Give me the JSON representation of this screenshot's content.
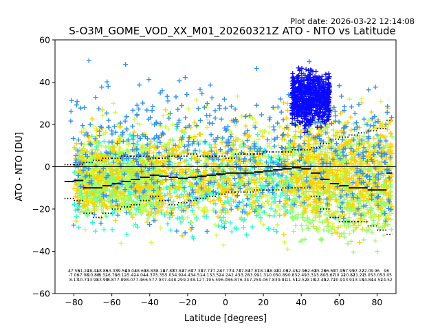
{
  "chart_data": {
    "type": "scatter",
    "plot_date": "Plot date: 2026-03-22 12:14:08",
    "title": "S-O3M_GOME_VOD_XX_M01_20260321Z ATO - NTO vs Latitude",
    "xlabel": "Latitude [degrees]",
    "ylabel": "ATO - NTO [DU]",
    "xlim": [
      -90,
      90
    ],
    "ylim": [
      -60,
      60
    ],
    "xticks": [
      -80,
      -60,
      -40,
      -20,
      0,
      20,
      40,
      60,
      80
    ],
    "yticks": [
      -60,
      -40,
      -20,
      0,
      20,
      40,
      60
    ],
    "grid": false,
    "marker": "+",
    "zero_line": 0,
    "point_colors": [
      "#2bffcc",
      "#90ff6a",
      "#cfff3a",
      "#ffd000",
      "#2e90ff",
      "#0a0aff"
    ],
    "scatter_clouds": [
      {
        "color": "#2bffcc",
        "xmin": -80,
        "xmax": 37,
        "ymin": -38,
        "ymax": 22
      },
      {
        "color": "#90ff6a",
        "xmin": -78,
        "xmax": -35,
        "ymin": -30,
        "ymax": 18
      },
      {
        "color": "#90ff6a",
        "xmin": 35,
        "xmax": 88,
        "ymin": -45,
        "ymax": 28
      },
      {
        "color": "#cfff3a",
        "xmin": -75,
        "xmax": 88,
        "ymin": -45,
        "ymax": 40
      },
      {
        "color": "#ffd000",
        "xmin": 30,
        "xmax": 88,
        "ymin": -38,
        "ymax": 35
      },
      {
        "color": "#ffd000",
        "xmin": -80,
        "xmax": 20,
        "ymin": -35,
        "ymax": 28
      },
      {
        "color": "#2e90ff",
        "xmin": -82,
        "xmax": 88,
        "ymin": -40,
        "ymax": 55
      },
      {
        "color": "#0a0aff",
        "xmin": 35,
        "xmax": 55,
        "ymin": 15,
        "ymax": 50
      }
    ],
    "mean_line": {
      "x": [
        -85,
        -80,
        -75,
        -70,
        -65,
        -60,
        -55,
        -50,
        -45,
        -40,
        -35,
        -30,
        -25,
        -20,
        -15,
        -10,
        -5,
        0,
        5,
        10,
        15,
        20,
        25,
        30,
        35,
        40,
        45,
        50,
        55,
        60,
        65,
        70,
        75,
        80,
        85,
        88
      ],
      "y": [
        -7,
        -6.5,
        -10,
        -10,
        -9,
        -8,
        -7,
        -6,
        -5,
        -4,
        -4.5,
        -5,
        -5.5,
        -5,
        -4.5,
        -4,
        -3.5,
        -3,
        -3,
        -3,
        -2.5,
        -2,
        -1.5,
        -1,
        -0.5,
        -1,
        -3,
        -6,
        -8,
        -9,
        -10,
        -10,
        -11,
        -11,
        -3,
        -3
      ]
    },
    "upper_sd_line": {
      "x": [
        -85,
        -80,
        -75,
        -70,
        -65,
        -60,
        -55,
        -50,
        -45,
        -40,
        -35,
        -30,
        -25,
        -20,
        -15,
        -10,
        -5,
        0,
        5,
        10,
        15,
        20,
        25,
        30,
        35,
        40,
        45,
        50,
        55,
        60,
        65,
        70,
        75,
        80,
        85,
        88
      ],
      "y": [
        1,
        1,
        2,
        3,
        4,
        4,
        5,
        5,
        5,
        4,
        4,
        5,
        5,
        6,
        5,
        5,
        5,
        4,
        6,
        6,
        6,
        7,
        7,
        7,
        8,
        8,
        9,
        11,
        13,
        14,
        15,
        16,
        17,
        18,
        22,
        22
      ]
    },
    "lower_sd_line": {
      "x": [
        -85,
        -80,
        -75,
        -70,
        -65,
        -60,
        -55,
        -50,
        -45,
        -40,
        -35,
        -30,
        -25,
        -20,
        -15,
        -10,
        -5,
        0,
        5,
        10,
        15,
        20,
        25,
        30,
        35,
        40,
        45,
        50,
        55,
        60,
        65,
        70,
        75,
        80,
        85,
        88
      ],
      "y": [
        -15,
        -16,
        -22,
        -24,
        -22,
        -20,
        -19,
        -18,
        -16,
        -14,
        -16,
        -18,
        -17,
        -16,
        -15,
        -14,
        -13,
        -12,
        -12,
        -12,
        -11,
        -11,
        -11,
        -10,
        -10,
        -10,
        -14,
        -20,
        -24,
        -26,
        -26,
        -26,
        -28,
        -30,
        -32,
        -32
      ]
    },
    "stats_rows": {
      "x": [
        -80,
        -75,
        -70,
        -65,
        -60,
        -55,
        -50,
        -45,
        -40,
        -35,
        -30,
        -25,
        -20,
        -15,
        -10,
        -5,
        0,
        5,
        10,
        15,
        20,
        25,
        30,
        35,
        40,
        45,
        50,
        55,
        60,
        65,
        70,
        75,
        80,
        85
      ],
      "row1": [
        "47.55",
        "61.24",
        "28.41",
        "48.86",
        "53.03",
        "39.59",
        "49.04",
        "48.69",
        "38.83",
        "38.18",
        "47.87",
        "87.87",
        "47.60",
        "77.37",
        "47.77",
        "77.24",
        "47.77",
        "74.77",
        "47.87",
        "47.87",
        "18.18",
        "48.92",
        "82.06",
        "32.41",
        "52.96",
        "62.62",
        "85.26",
        "06.67",
        "07.95",
        "97.95",
        "97.22",
        "22.09",
        "96",
        "96"
      ],
      "row2": [
        "-7.06",
        "-7.08",
        "-10.86",
        "-8.32",
        "-6.78",
        "-6.12",
        "-5.42",
        "-4.04",
        "-4.37",
        "-5.35",
        "-5.03",
        "-4.92",
        "-4.43",
        "-4.51",
        "-4.13",
        "-3.52",
        "-4.24",
        "-2.43",
        "-3.28",
        "-3.99",
        "-1.31",
        "-0.05",
        "-0.89",
        "-0.83",
        "-2.49",
        "-3.31",
        "-5.80",
        "-5.67",
        "-10.22",
        "-10.82",
        "-11.21",
        "-3.05",
        "-3.05",
        "-3.05"
      ],
      "row3": [
        "8.17",
        "10.71",
        "13.98",
        "13.98",
        "8.87",
        "7.89",
        "8.07",
        "7.46",
        "6.57",
        "7.93",
        "7.44",
        "8.29",
        "9.23",
        "8.12",
        "7.19",
        "5.59",
        "6.08",
        "6.87",
        "6.34",
        "7.25",
        "9.06",
        "7.83",
        "9.81",
        "11.51",
        "12.52",
        "9.18",
        "12.49",
        "12.72",
        "10.91",
        "13.91",
        "13.18",
        "14.84",
        "14.52",
        "14.52"
      ]
    }
  }
}
